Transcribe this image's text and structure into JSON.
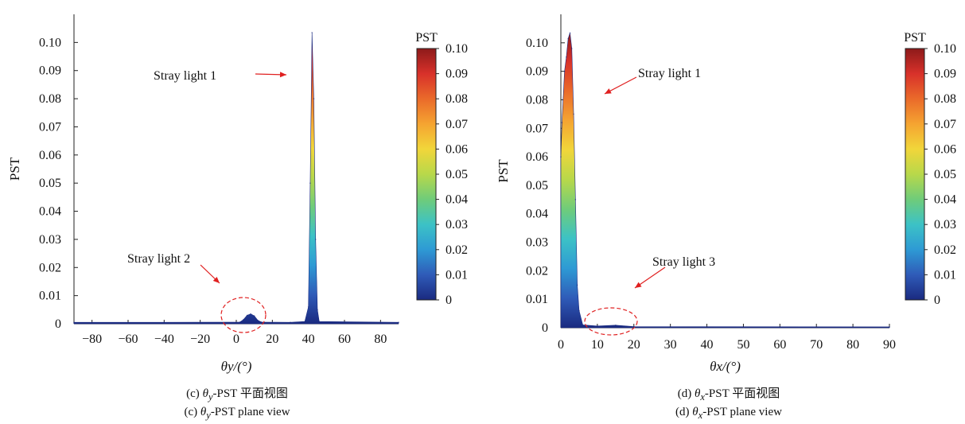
{
  "chart_data": [
    {
      "type": "area",
      "panel": "c",
      "xlabel": "θy/(°)",
      "ylabel": "PST",
      "xlim": [
        -90,
        90
      ],
      "ylim": [
        0,
        0.11
      ],
      "x_ticks": [
        -80,
        -60,
        -40,
        -20,
        0,
        20,
        40,
        60,
        80
      ],
      "y_ticks": [
        0,
        0.01,
        0.02,
        0.03,
        0.04,
        0.05,
        0.06,
        0.07,
        0.08,
        0.09,
        0.1
      ],
      "y_tick_labels": [
        "0",
        "0.01",
        "0.02",
        "0.03",
        "0.04",
        "0.05",
        "0.06",
        "0.07",
        "0.08",
        "0.09",
        "0.10"
      ],
      "x_tick_labels": [
        "−80",
        "−60",
        "−40",
        "−20",
        "0",
        "20",
        "40",
        "60",
        "80"
      ],
      "x": [
        -90,
        -40,
        2,
        4,
        6,
        8,
        10,
        12,
        14,
        30,
        38,
        40,
        41,
        42,
        43,
        44,
        45,
        46,
        90
      ],
      "y": [
        0.0005,
        0.0005,
        0.0006,
        0.0015,
        0.003,
        0.0035,
        0.0028,
        0.0012,
        0.0006,
        0.0005,
        0.0008,
        0.006,
        0.05,
        0.1035,
        0.08,
        0.03,
        0.005,
        0.0008,
        0.0005
      ],
      "colorbar": {
        "title": "PST",
        "ticks": [
          "0",
          "0.01",
          "0.02",
          "0.03",
          "0.04",
          "0.05",
          "0.06",
          "0.07",
          "0.08",
          "0.09",
          "0.10"
        ],
        "range": [
          0,
          0.104
        ]
      },
      "annotations": [
        {
          "text": "Stray light 1",
          "target": [
            42,
            0.088
          ]
        },
        {
          "text": "Stray light 2",
          "target": [
            5,
            0.012
          ]
        }
      ],
      "grid": false
    },
    {
      "type": "area",
      "panel": "d",
      "xlabel": "θx/(°)",
      "ylabel": "PST",
      "xlim": [
        0,
        90
      ],
      "ylim": [
        0,
        0.11
      ],
      "x_ticks": [
        0,
        10,
        20,
        30,
        40,
        50,
        60,
        70,
        80,
        90
      ],
      "x_tick_labels": [
        "0",
        "10",
        "20",
        "30",
        "40",
        "50",
        "60",
        "70",
        "80",
        "90"
      ],
      "y_ticks": [
        0,
        0.01,
        0.02,
        0.03,
        0.04,
        0.05,
        0.06,
        0.07,
        0.08,
        0.09,
        0.1
      ],
      "y_tick_labels": [
        "0",
        "0.01",
        "0.02",
        "0.03",
        "0.04",
        "0.05",
        "0.06",
        "0.07",
        "0.08",
        "0.09",
        "0.10"
      ],
      "x": [
        0,
        0.3,
        1,
        1.5,
        2,
        2.5,
        3,
        3.5,
        4,
        4.5,
        5,
        6,
        10,
        15,
        20,
        90
      ],
      "y": [
        0.06,
        0.072,
        0.09,
        0.095,
        0.1015,
        0.1035,
        0.098,
        0.075,
        0.045,
        0.015,
        0.006,
        0.001,
        0.0006,
        0.0009,
        0.0004,
        0.0003
      ],
      "colorbar": {
        "title": "PST",
        "ticks": [
          "0",
          "0.01",
          "0.02",
          "0.03",
          "0.04",
          "0.05",
          "0.06",
          "0.07",
          "0.08",
          "0.09",
          "0.10"
        ],
        "range": [
          0,
          0.104
        ]
      },
      "annotations": [
        {
          "text": "Stray light 1",
          "target": [
            3.5,
            0.083
          ]
        },
        {
          "text": "Stray light 3",
          "target": [
            14,
            0.006
          ]
        }
      ],
      "grid": false
    }
  ],
  "captions": {
    "left_zh_prefix": "(c) ",
    "left_sym": "θ",
    "left_sub": "y",
    "left_zh_suffix": "-PST 平面视图",
    "left_en_prefix": "(c) ",
    "left_en_suffix": "-PST plane view",
    "right_zh_prefix": "(d) ",
    "right_sym": "θ",
    "right_sub": "x",
    "right_zh_suffix": "-PST 平面视图",
    "right_en_prefix": "(d) ",
    "right_en_suffix": "-PST plane view"
  },
  "colormap": [
    "#1a2a80",
    "#2f5bb8",
    "#2e9ad4",
    "#3cc2c6",
    "#6fcc7a",
    "#b8d84a",
    "#f1d63a",
    "#f5a431",
    "#ea6a2a",
    "#d8312a",
    "#8d1a1a"
  ]
}
